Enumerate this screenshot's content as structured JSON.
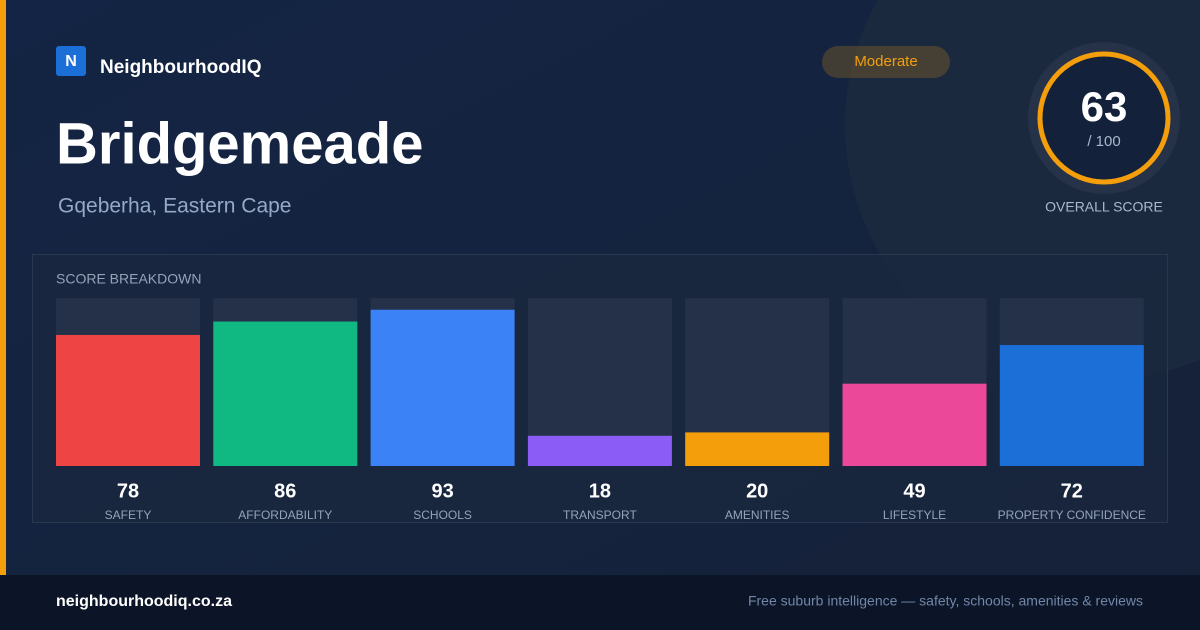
{
  "header": {
    "logo_letter": "N",
    "brand": "NeighbourhoodIQ",
    "title": "Bridgemeade",
    "subtitle": "Gqeberha, Eastern Cape",
    "badge": "Moderate"
  },
  "score": {
    "value": 63,
    "max": {
      "value": 100,
      "label": "/ 100"
    },
    "caption": "OVERALL SCORE"
  },
  "chart_data": {
    "type": "bar",
    "title": "SCORE BREAKDOWN",
    "categories": [
      "SAFETY",
      "AFFORDABILITY",
      "SCHOOLS",
      "TRANSPORT",
      "AMENITIES",
      "LIFESTYLE",
      "PROPERTY CONFIDENCE"
    ],
    "values": [
      78,
      86,
      93,
      18,
      20,
      49,
      72
    ],
    "colors": [
      "#ef4444",
      "#10b981",
      "#3b82f6",
      "#8b5cf6",
      "#f59e0b",
      "#ec4899",
      "#1d6fd8"
    ],
    "ylim": [
      0,
      100
    ]
  },
  "footer": {
    "site": "neighbourhoodiq.co.za",
    "tagline": "Free suburb intelligence — safety, schools, amenities & reviews"
  }
}
